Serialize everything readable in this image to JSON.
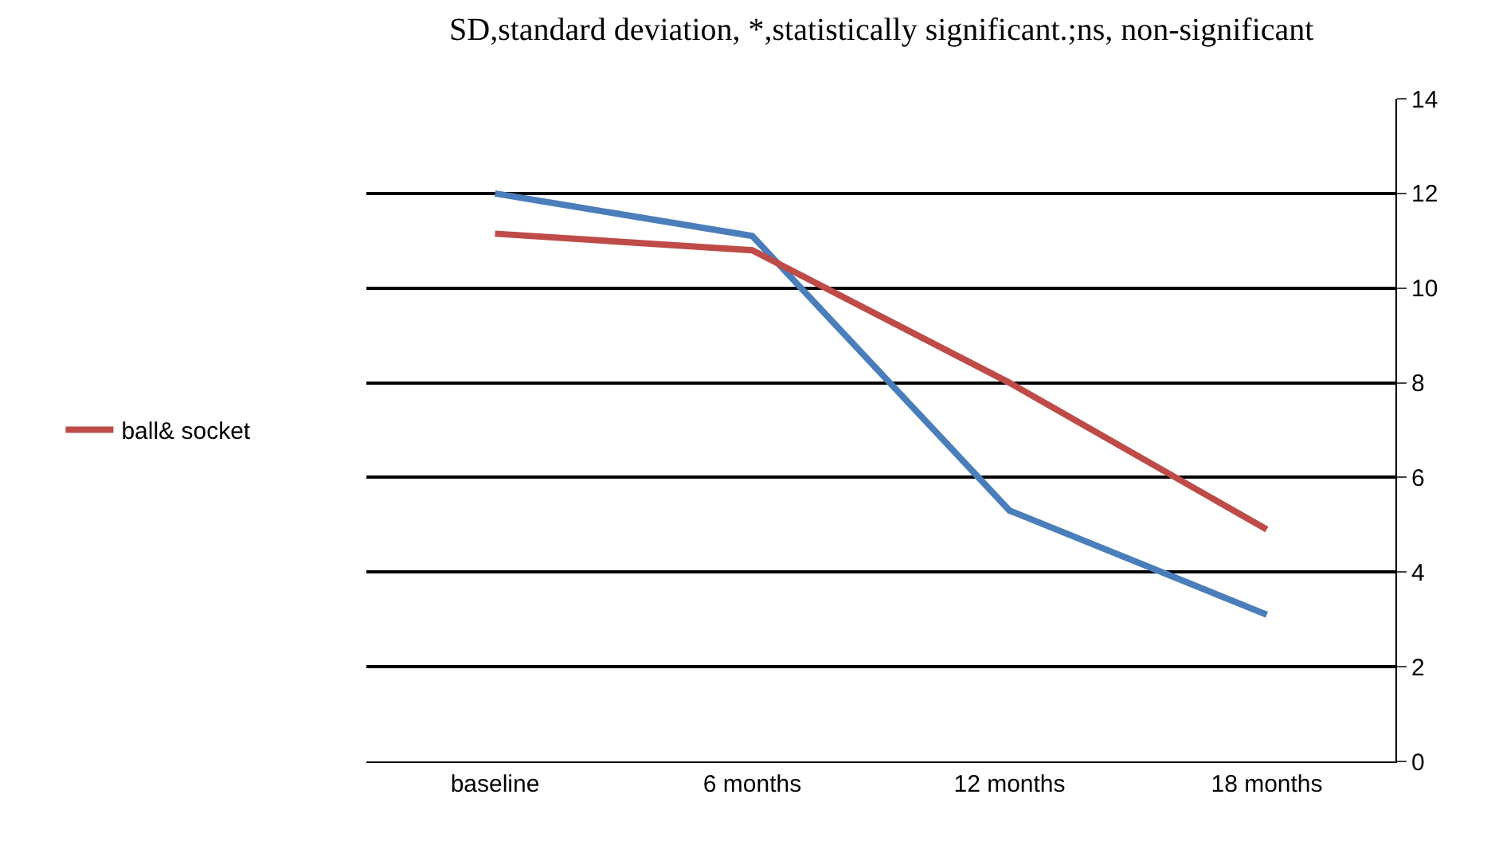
{
  "chart_data": {
    "type": "line",
    "annotations": [
      "SD,standard deviation, *,statistically significant.;ns, non-significant"
    ],
    "categories": [
      "baseline",
      "6 months",
      "12 months",
      "18 months"
    ],
    "series": [
      {
        "color": "#4a7ebb",
        "values": [
          12.0,
          11.1,
          5.3,
          3.1
        ]
      },
      {
        "name": "ball& socket",
        "color": "#be4b48",
        "values": [
          11.15,
          10.8,
          8.0,
          4.9
        ]
      }
    ],
    "ylim": [
      0,
      14
    ],
    "yticks": [
      0,
      2,
      4,
      6,
      8,
      10,
      12,
      14
    ],
    "grid": "y",
    "legend": "left",
    "marker": "none",
    "line_style": "solid"
  }
}
